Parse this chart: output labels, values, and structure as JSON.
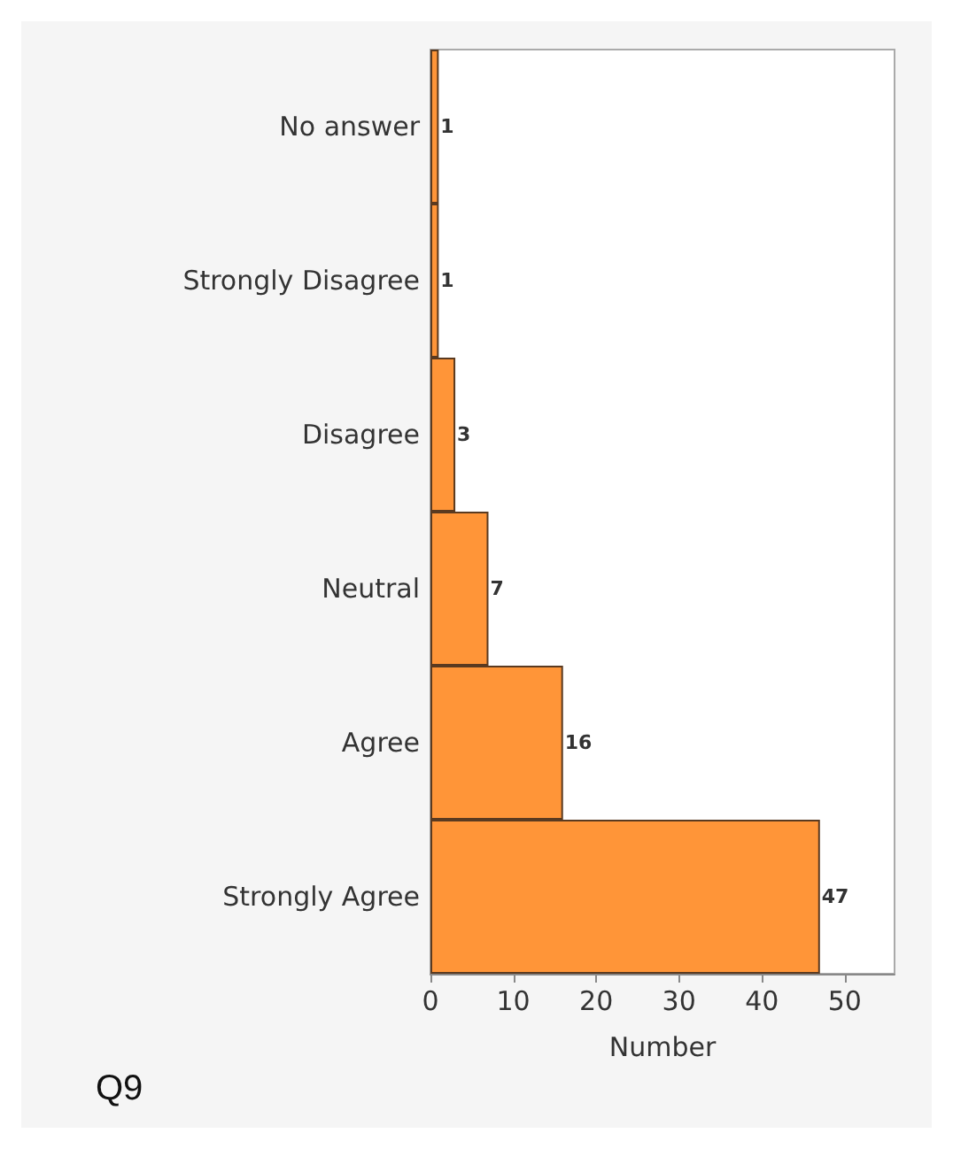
{
  "chart_data": {
    "type": "bar",
    "orientation": "horizontal",
    "categories": [
      "No answer",
      "Strongly Disagree",
      "Disagree",
      "Neutral",
      "Agree",
      "Strongly Agree"
    ],
    "values": [
      1,
      1,
      3,
      7,
      16,
      47
    ],
    "color": "#ff9538",
    "xlabel": "Number",
    "xlim": [
      0,
      56
    ],
    "xticks": [
      0,
      10,
      20,
      30,
      40,
      50
    ],
    "data_labels": true,
    "grid": false,
    "annotations": [
      "Q9"
    ]
  }
}
